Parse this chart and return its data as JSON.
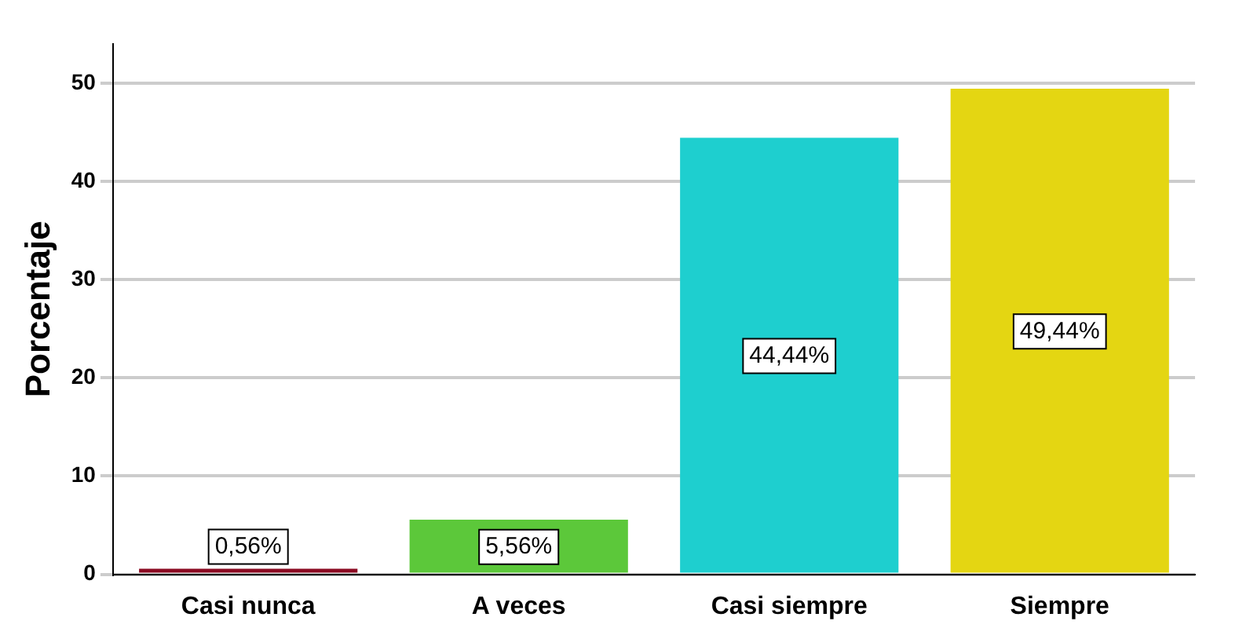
{
  "chart_data": {
    "type": "bar",
    "ylabel": "Porcentaje",
    "categories": [
      "Casi nunca",
      "A veces",
      "Casi siempre",
      "Siempre"
    ],
    "values": [
      0.56,
      5.56,
      44.44,
      49.44
    ],
    "colors": [
      "#8b0a22",
      "#5cc83a",
      "#1ecfcf",
      "#e4d612"
    ],
    "value_labels": [
      "0,56%",
      "5,56%",
      "44,44%",
      "49,44%"
    ],
    "ylim": [
      0,
      54
    ],
    "yticks": [
      0,
      10,
      20,
      30,
      40,
      50
    ],
    "grid": "y"
  }
}
